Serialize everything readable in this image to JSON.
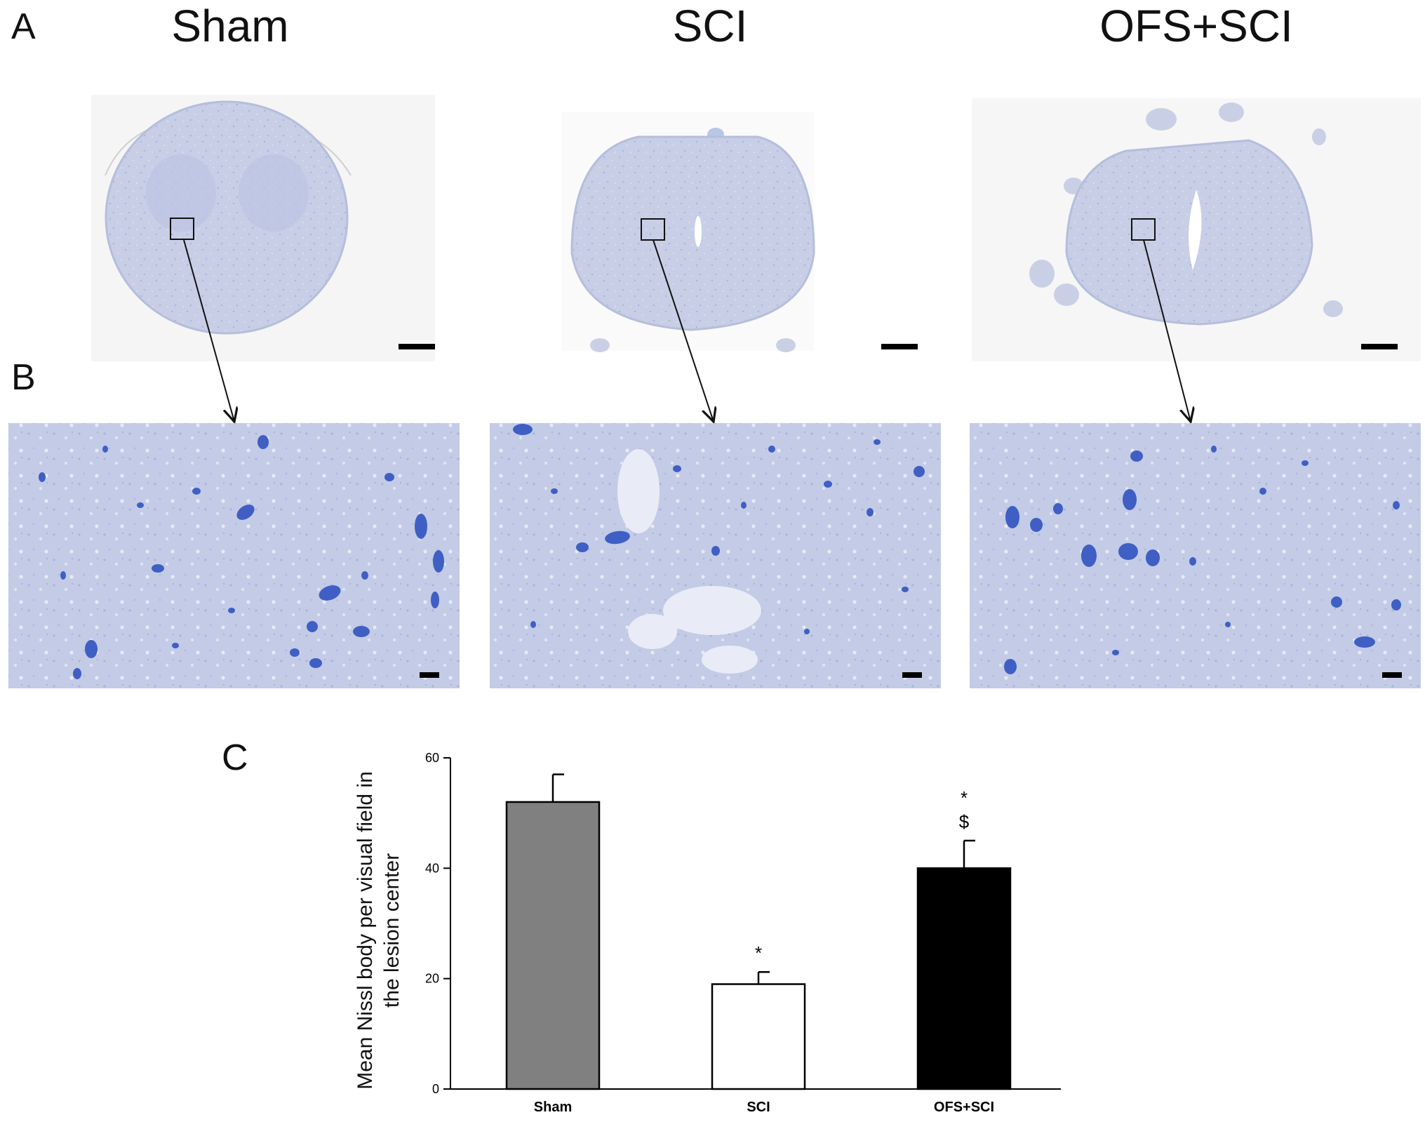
{
  "figure": {
    "panels": {
      "a": "A",
      "b": "B",
      "c": "C"
    },
    "groups": [
      {
        "label": "Sham"
      },
      {
        "label": "SCI"
      },
      {
        "label": "OFS+SCI"
      }
    ]
  },
  "colors": {
    "tissue": "#c9d0e6",
    "tissue_edge": "#b5bedb",
    "neuron": "#3f5fc4",
    "sham_bar": "#808080",
    "sci_bar": "#ffffff",
    "ofs_bar": "#000000"
  },
  "chart_data": {
    "type": "bar",
    "categories": [
      "Sham",
      "SCI",
      "OFS+SCI"
    ],
    "values": [
      52,
      19,
      40
    ],
    "errors": [
      5,
      2.2,
      5
    ],
    "annotations": [
      "",
      "*",
      "*\n$"
    ],
    "ylabel_line1": "Mean Nissl body per visual field in",
    "ylabel_line2": "the lesion center",
    "ylim": [
      0,
      60
    ],
    "yticks": [
      0,
      20,
      40,
      60
    ],
    "grid": false,
    "legend": "none"
  }
}
